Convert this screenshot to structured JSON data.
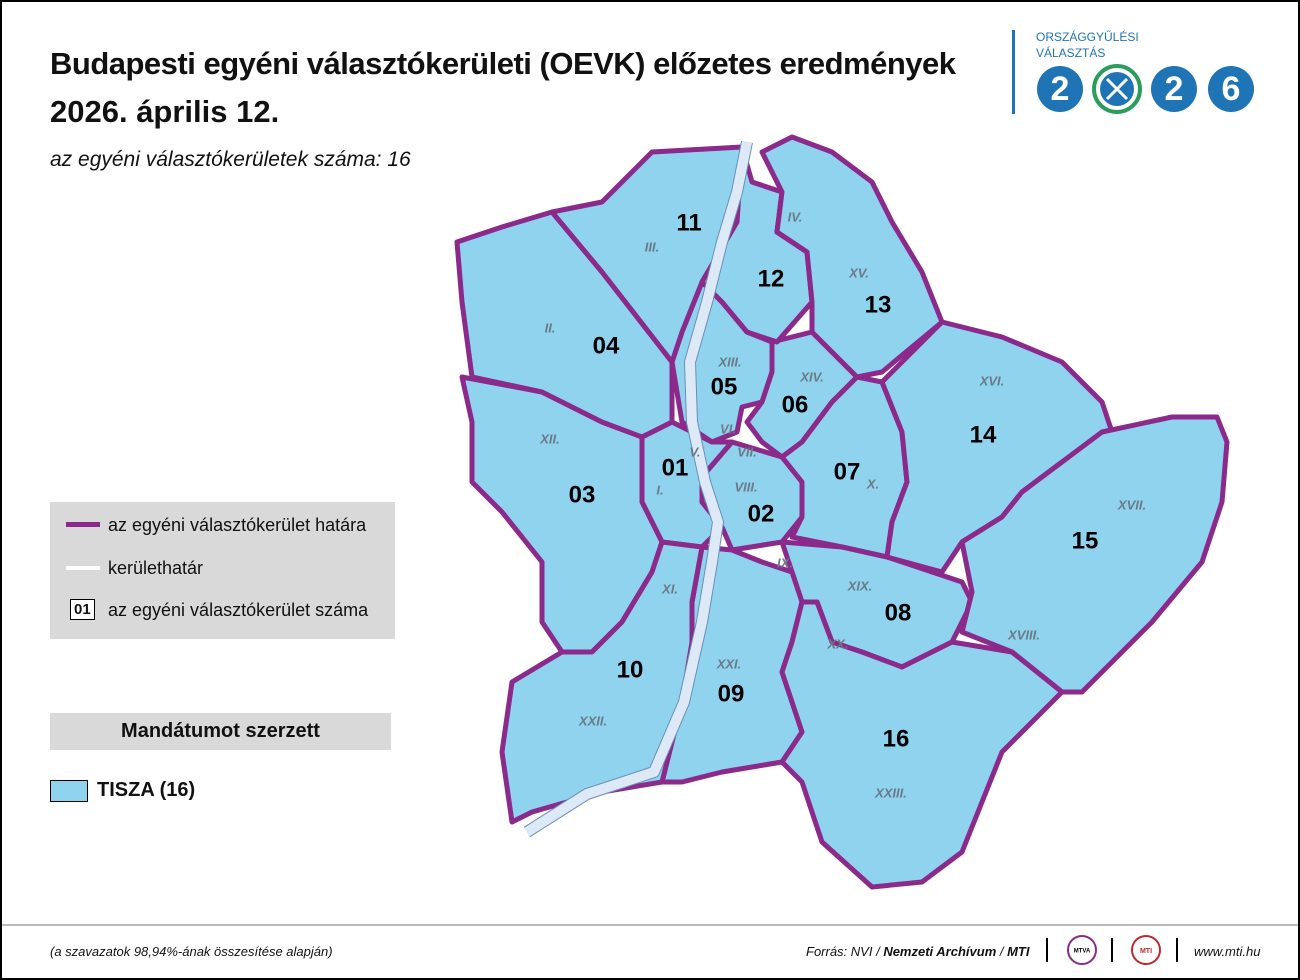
{
  "header": {
    "title_line1": "Budapesti egyéni választókerületi (OEVK) előzetes eredmények",
    "title_line2": "2026. április 12.",
    "subtitle": "az egyéni választókerületek száma: 16"
  },
  "logo": {
    "line1": "ORSZÁGGYŰLÉSI",
    "line2": "VÁLASZTÁS",
    "digits": [
      "2",
      "2",
      "6"
    ]
  },
  "map": {
    "districts": [
      "01",
      "02",
      "03",
      "04",
      "05",
      "06",
      "07",
      "08",
      "09",
      "10",
      "11",
      "12",
      "13",
      "14",
      "15",
      "16"
    ],
    "boroughs": [
      "I.",
      "II.",
      "III.",
      "IV.",
      "V.",
      "VI.",
      "VII.",
      "VIII.",
      "IX.",
      "X.",
      "XI.",
      "XII.",
      "XIII.",
      "XIV.",
      "XV.",
      "XVI.",
      "XVII.",
      "XVIII.",
      "XIX.",
      "XX.",
      "XXI.",
      "XXII.",
      "XXIII."
    ]
  },
  "legend": {
    "boundary": "az egyéni választókerület határa",
    "borough_boundary": "kerülethatár",
    "sample_number": "01",
    "number": "az egyéni választókerület száma"
  },
  "mandate": {
    "title": "Mandátumot szerzett",
    "party": "TISZA (16)"
  },
  "footer": {
    "note": "(a szavazatok 98,94%-ának összesítése alapján)",
    "source": "Forrás: NVI",
    "archive": "Nemzeti Archívum",
    "mti": "MTI",
    "mtva_logo": "MTVA",
    "mti_logo": "MTI",
    "url": "www.mti.hu"
  }
}
